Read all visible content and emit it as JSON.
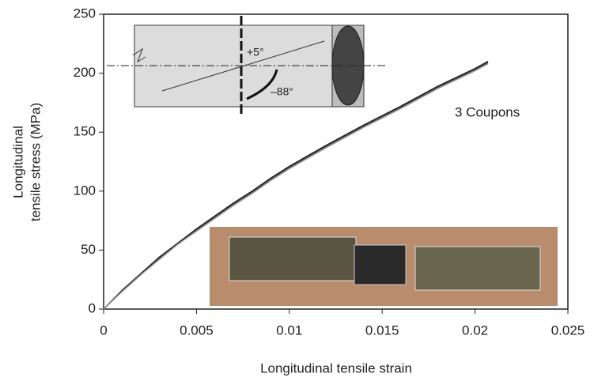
{
  "chart_data": {
    "type": "line",
    "xlabel": "Longitudinal tensile strain",
    "ylabel": [
      "Longitudinal",
      "tensile stress (MPa)"
    ],
    "annotation": "3 Coupons",
    "diagram_labels": [
      "+5°",
      "–88°"
    ],
    "x": [
      0,
      0.001,
      0.002,
      0.003,
      0.004,
      0.005,
      0.006,
      0.007,
      0.008,
      0.009,
      0.01,
      0.012,
      0.014,
      0.016,
      0.018,
      0.02,
      0.0207
    ],
    "series": [
      {
        "color": "#1a1a1a",
        "values": [
          0,
          16,
          30,
          44,
          56,
          68,
          79,
          90,
          100,
          111,
          121,
          139,
          156,
          172,
          189,
          204,
          210
        ]
      },
      {
        "color": "#444444",
        "values": [
          0,
          15,
          29,
          43,
          55,
          67,
          78,
          89,
          99,
          110,
          120,
          138,
          155,
          171,
          188,
          203,
          209
        ]
      },
      {
        "color": "#999999",
        "values": [
          0,
          15,
          29,
          42,
          55,
          66,
          77,
          88,
          98,
          109,
          119,
          137,
          154,
          170,
          187,
          202,
          208
        ]
      }
    ],
    "xlim": [
      0,
      0.025
    ],
    "xticks": [
      0,
      0.005,
      0.01,
      0.015,
      0.02,
      0.025
    ],
    "ylim": [
      0,
      250
    ],
    "yticks": [
      0,
      50,
      100,
      150,
      200,
      250
    ],
    "grid": false
  }
}
